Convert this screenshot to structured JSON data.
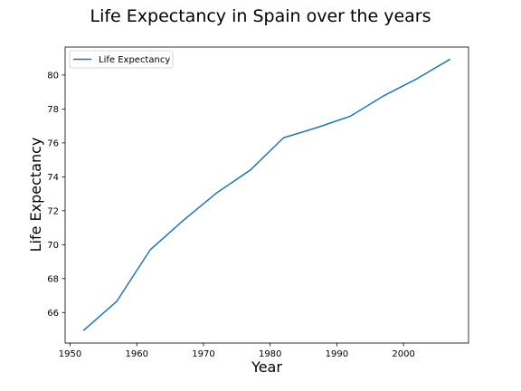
{
  "chart_data": {
    "type": "line",
    "title": "Life Expectancy in Spain over the years",
    "xlabel": "Year",
    "ylabel": "Life Expectancy",
    "xlim": [
      1949.25,
      2009.75
    ],
    "ylim": [
      64.2,
      81.65
    ],
    "xticks": [
      1950,
      1960,
      1970,
      1980,
      1990,
      2000
    ],
    "yticks": [
      66,
      68,
      70,
      72,
      74,
      76,
      78,
      80
    ],
    "grid": false,
    "legend_position": "upper-left",
    "series": [
      {
        "name": "Life Expectancy",
        "color": "#1f77b4",
        "x": [
          1952,
          1957,
          1962,
          1967,
          1972,
          1977,
          1982,
          1987,
          1992,
          1997,
          2002,
          2007
        ],
        "y": [
          64.94,
          66.66,
          69.69,
          71.44,
          73.06,
          74.39,
          76.3,
          76.9,
          77.57,
          78.77,
          79.78,
          80.94
        ]
      }
    ]
  }
}
